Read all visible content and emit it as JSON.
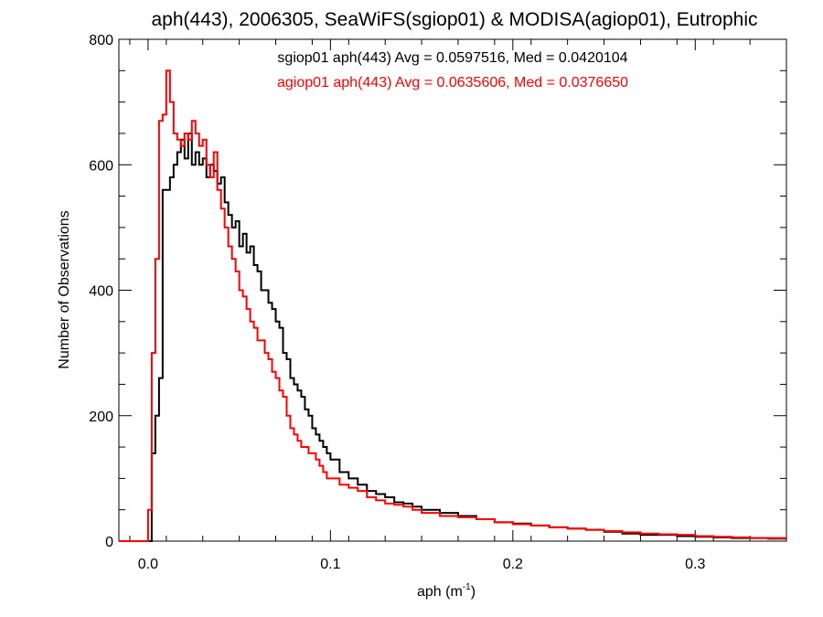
{
  "chart_data": {
    "type": "line",
    "title": "aph(443), 2006305, SeaWiFS(sgiop01) & MODISA(agiop01), Eutrophic",
    "xlabel_base": "aph (m",
    "xlabel_sup": "-1",
    "xlabel_close": ")",
    "ylabel": "Number of Observations",
    "xlim": [
      -0.016,
      0.35
    ],
    "ylim": [
      0,
      800
    ],
    "xticks": [
      0.0,
      0.1,
      0.2,
      0.3
    ],
    "xtick_labels": [
      "0.0",
      "0.1",
      "0.2",
      "0.3"
    ],
    "yticks": [
      0,
      200,
      400,
      600,
      800
    ],
    "ytick_labels": [
      "0",
      "200",
      "400",
      "600",
      "800"
    ],
    "grid": false,
    "series": [
      {
        "label": "sgiop01 aph(443) Avg = 0.0597516, Med = 0.0420104",
        "color": "#000000",
        "points": [
          [
            -0.016,
            0
          ],
          [
            0.0,
            0
          ],
          [
            0.002,
            140
          ],
          [
            0.004,
            200
          ],
          [
            0.006,
            260
          ],
          [
            0.008,
            560
          ],
          [
            0.01,
            560
          ],
          [
            0.012,
            580
          ],
          [
            0.014,
            600
          ],
          [
            0.016,
            620
          ],
          [
            0.018,
            640
          ],
          [
            0.02,
            610
          ],
          [
            0.022,
            650
          ],
          [
            0.024,
            600
          ],
          [
            0.026,
            620
          ],
          [
            0.028,
            600
          ],
          [
            0.03,
            610
          ],
          [
            0.032,
            580
          ],
          [
            0.034,
            600
          ],
          [
            0.036,
            590
          ],
          [
            0.038,
            570
          ],
          [
            0.04,
            580
          ],
          [
            0.042,
            540
          ],
          [
            0.044,
            520
          ],
          [
            0.046,
            500
          ],
          [
            0.048,
            510
          ],
          [
            0.05,
            470
          ],
          [
            0.052,
            490
          ],
          [
            0.054,
            460
          ],
          [
            0.056,
            470
          ],
          [
            0.058,
            440
          ],
          [
            0.06,
            430
          ],
          [
            0.062,
            400
          ],
          [
            0.064,
            400
          ],
          [
            0.066,
            380
          ],
          [
            0.068,
            370
          ],
          [
            0.07,
            350
          ],
          [
            0.072,
            340
          ],
          [
            0.074,
            300
          ],
          [
            0.076,
            290
          ],
          [
            0.078,
            260
          ],
          [
            0.08,
            250
          ],
          [
            0.082,
            240
          ],
          [
            0.084,
            230
          ],
          [
            0.086,
            210
          ],
          [
            0.088,
            200
          ],
          [
            0.09,
            180
          ],
          [
            0.092,
            170
          ],
          [
            0.094,
            160
          ],
          [
            0.096,
            150
          ],
          [
            0.098,
            140
          ],
          [
            0.1,
            130
          ],
          [
            0.105,
            110
          ],
          [
            0.11,
            100
          ],
          [
            0.115,
            90
          ],
          [
            0.12,
            80
          ],
          [
            0.125,
            75
          ],
          [
            0.13,
            70
          ],
          [
            0.135,
            62
          ],
          [
            0.14,
            60
          ],
          [
            0.145,
            55
          ],
          [
            0.15,
            50
          ],
          [
            0.16,
            45
          ],
          [
            0.17,
            40
          ],
          [
            0.18,
            35
          ],
          [
            0.19,
            30
          ],
          [
            0.2,
            28
          ],
          [
            0.21,
            25
          ],
          [
            0.22,
            22
          ],
          [
            0.23,
            20
          ],
          [
            0.24,
            18
          ],
          [
            0.25,
            15
          ],
          [
            0.26,
            12
          ],
          [
            0.27,
            10
          ],
          [
            0.28,
            10
          ],
          [
            0.29,
            8
          ],
          [
            0.3,
            7
          ],
          [
            0.31,
            6
          ],
          [
            0.32,
            5
          ],
          [
            0.33,
            5
          ],
          [
            0.34,
            4
          ],
          [
            0.35,
            4
          ]
        ]
      },
      {
        "label": "agiop01 aph(443) Avg = 0.0635606, Med = 0.0376650",
        "color": "#ff0000",
        "points": [
          [
            -0.016,
            0
          ],
          [
            -0.002,
            0
          ],
          [
            0.0,
            50
          ],
          [
            0.002,
            300
          ],
          [
            0.004,
            450
          ],
          [
            0.006,
            670
          ],
          [
            0.008,
            680
          ],
          [
            0.01,
            750
          ],
          [
            0.012,
            700
          ],
          [
            0.014,
            650
          ],
          [
            0.016,
            640
          ],
          [
            0.018,
            630
          ],
          [
            0.02,
            650
          ],
          [
            0.022,
            640
          ],
          [
            0.024,
            670
          ],
          [
            0.026,
            650
          ],
          [
            0.028,
            630
          ],
          [
            0.03,
            640
          ],
          [
            0.032,
            600
          ],
          [
            0.034,
            580
          ],
          [
            0.036,
            620
          ],
          [
            0.038,
            560
          ],
          [
            0.04,
            530
          ],
          [
            0.042,
            500
          ],
          [
            0.044,
            470
          ],
          [
            0.046,
            450
          ],
          [
            0.048,
            430
          ],
          [
            0.05,
            400
          ],
          [
            0.052,
            390
          ],
          [
            0.054,
            370
          ],
          [
            0.056,
            350
          ],
          [
            0.058,
            340
          ],
          [
            0.06,
            320
          ],
          [
            0.062,
            320
          ],
          [
            0.064,
            300
          ],
          [
            0.066,
            290
          ],
          [
            0.068,
            270
          ],
          [
            0.07,
            260
          ],
          [
            0.072,
            240
          ],
          [
            0.074,
            230
          ],
          [
            0.076,
            200
          ],
          [
            0.078,
            180
          ],
          [
            0.08,
            170
          ],
          [
            0.082,
            160
          ],
          [
            0.084,
            150
          ],
          [
            0.086,
            150
          ],
          [
            0.088,
            140
          ],
          [
            0.09,
            140
          ],
          [
            0.092,
            130
          ],
          [
            0.094,
            120
          ],
          [
            0.096,
            110
          ],
          [
            0.098,
            100
          ],
          [
            0.1,
            100
          ],
          [
            0.105,
            90
          ],
          [
            0.11,
            85
          ],
          [
            0.115,
            80
          ],
          [
            0.12,
            70
          ],
          [
            0.125,
            65
          ],
          [
            0.13,
            60
          ],
          [
            0.135,
            58
          ],
          [
            0.14,
            55
          ],
          [
            0.145,
            50
          ],
          [
            0.15,
            45
          ],
          [
            0.16,
            40
          ],
          [
            0.17,
            38
          ],
          [
            0.18,
            35
          ],
          [
            0.19,
            30
          ],
          [
            0.2,
            27
          ],
          [
            0.21,
            25
          ],
          [
            0.22,
            22
          ],
          [
            0.23,
            20
          ],
          [
            0.24,
            18
          ],
          [
            0.25,
            16
          ],
          [
            0.26,
            14
          ],
          [
            0.27,
            12
          ],
          [
            0.28,
            11
          ],
          [
            0.29,
            10
          ],
          [
            0.3,
            8
          ],
          [
            0.31,
            7
          ],
          [
            0.32,
            6
          ],
          [
            0.33,
            5
          ],
          [
            0.34,
            5
          ],
          [
            0.35,
            5
          ]
        ]
      }
    ]
  }
}
